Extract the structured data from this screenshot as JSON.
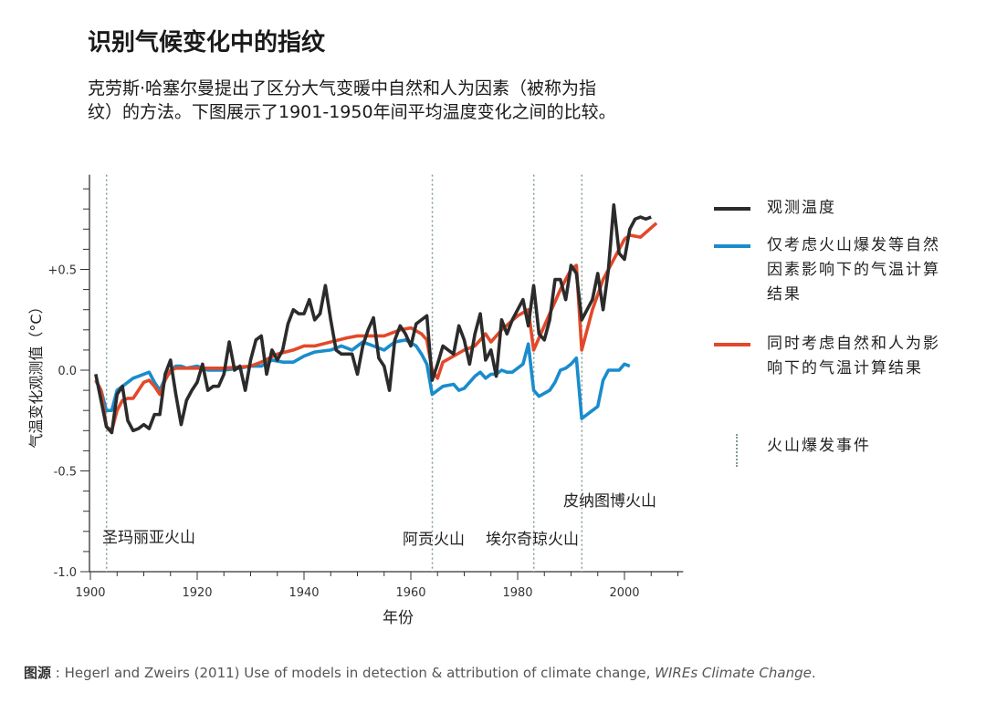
{
  "title": "识别气候变化中的指纹",
  "subtitle": "克劳斯·哈塞尔曼提出了区分大气变暖中自然和人为因素（被称为指纹）的方法。下图展示了1901-1950年间平均温度变化之间的比较。",
  "source": {
    "label": "图源",
    "text": " : Hegerl and Zweirs (2011) Use of models in detection & attribution of climate change, ",
    "journal": "WIREs Climate Change",
    "end": "."
  },
  "chart_data": {
    "type": "line",
    "xlabel": "年份",
    "ylabel": "气温变化观测值（°C）",
    "xlim": [
      1900,
      2011
    ],
    "ylim": [
      -1.0,
      0.97
    ],
    "x_ticks": [
      1900,
      1920,
      1940,
      1960,
      1980,
      2000
    ],
    "x_tick_labels": [
      "1900",
      "1920",
      "1940",
      "1960",
      "1980",
      "2000"
    ],
    "y_ticks": [
      0.5,
      0.0,
      -0.5,
      -1.0
    ],
    "y_tick_labels": [
      "+0.5",
      "0.0",
      "-0.5",
      "-1.0"
    ],
    "grid": false,
    "legend_position": "right",
    "series": [
      {
        "name": "观测温度",
        "color": "#2b2b2b",
        "x": [
          1901,
          1902,
          1903,
          1904,
          1905,
          1906,
          1907,
          1908,
          1909,
          1910,
          1911,
          1912,
          1913,
          1914,
          1915,
          1916,
          1917,
          1918,
          1919,
          1920,
          1921,
          1922,
          1923,
          1924,
          1925,
          1926,
          1927,
          1928,
          1929,
          1930,
          1931,
          1932,
          1933,
          1934,
          1935,
          1936,
          1937,
          1938,
          1939,
          1940,
          1941,
          1942,
          1943,
          1944,
          1945,
          1946,
          1947,
          1948,
          1949,
          1950,
          1951,
          1952,
          1953,
          1954,
          1955,
          1956,
          1957,
          1958,
          1959,
          1960,
          1961,
          1962,
          1963,
          1964,
          1965,
          1966,
          1967,
          1968,
          1969,
          1970,
          1971,
          1972,
          1973,
          1974,
          1975,
          1976,
          1977,
          1978,
          1979,
          1980,
          1981,
          1982,
          1983,
          1984,
          1985,
          1986,
          1987,
          1988,
          1989,
          1990,
          1991,
          1992,
          1993,
          1994,
          1995,
          1996,
          1997,
          1998,
          1999,
          2000,
          2001,
          2002,
          2003,
          2004,
          2005
        ],
        "y": [
          -0.02,
          -0.15,
          -0.28,
          -0.31,
          -0.12,
          -0.08,
          -0.25,
          -0.3,
          -0.29,
          -0.27,
          -0.29,
          -0.22,
          -0.22,
          -0.02,
          0.05,
          -0.12,
          -0.27,
          -0.15,
          -0.1,
          -0.06,
          0.03,
          -0.1,
          -0.08,
          -0.08,
          -0.02,
          0.14,
          0.0,
          0.02,
          -0.1,
          0.05,
          0.15,
          0.17,
          -0.02,
          0.1,
          0.05,
          0.1,
          0.23,
          0.3,
          0.28,
          0.28,
          0.35,
          0.25,
          0.28,
          0.42,
          0.25,
          0.1,
          0.08,
          0.08,
          0.08,
          -0.02,
          0.12,
          0.2,
          0.26,
          0.06,
          0.02,
          -0.1,
          0.15,
          0.22,
          0.18,
          0.12,
          0.23,
          0.25,
          0.27,
          -0.05,
          0.03,
          0.12,
          0.1,
          0.08,
          0.22,
          0.15,
          0.03,
          0.18,
          0.28,
          0.05,
          0.1,
          -0.03,
          0.25,
          0.18,
          0.25,
          0.3,
          0.35,
          0.22,
          0.42,
          0.18,
          0.15,
          0.25,
          0.45,
          0.45,
          0.35,
          0.52,
          0.48,
          0.25,
          0.3,
          0.35,
          0.48,
          0.3,
          0.5,
          0.82,
          0.58,
          0.55,
          0.7,
          0.75,
          0.76,
          0.75,
          0.76
        ]
      },
      {
        "name": "仅考虑火山爆发等自然因素影响下的气温计算结果",
        "color": "#1a8ccc",
        "x": [
          1901,
          1902,
          1903,
          1904,
          1905,
          1906,
          1907,
          1908,
          1909,
          1910,
          1911,
          1912,
          1913,
          1914,
          1915,
          1916,
          1917,
          1918,
          1920,
          1922,
          1925,
          1928,
          1930,
          1932,
          1934,
          1936,
          1938,
          1940,
          1942,
          1945,
          1947,
          1949,
          1951,
          1953,
          1955,
          1957,
          1959,
          1961,
          1962,
          1963,
          1964,
          1966,
          1968,
          1969,
          1970,
          1971,
          1972,
          1973,
          1974,
          1975,
          1976,
          1977,
          1978,
          1979,
          1980,
          1981,
          1982,
          1983,
          1984,
          1986,
          1987,
          1988,
          1989,
          1990,
          1991,
          1992,
          1994,
          1995,
          1996,
          1997,
          1998,
          1999,
          2000,
          2001
        ],
        "y": [
          -0.05,
          -0.1,
          -0.2,
          -0.2,
          -0.1,
          -0.08,
          -0.06,
          -0.04,
          -0.03,
          -0.02,
          -0.01,
          -0.06,
          -0.1,
          -0.04,
          -0.01,
          0.02,
          0.02,
          0.01,
          0.02,
          0.0,
          0.0,
          0.01,
          0.02,
          0.02,
          0.05,
          0.04,
          0.04,
          0.07,
          0.09,
          0.1,
          0.12,
          0.1,
          0.14,
          0.12,
          0.1,
          0.14,
          0.15,
          0.12,
          0.08,
          0.03,
          -0.12,
          -0.08,
          -0.07,
          -0.1,
          -0.09,
          -0.06,
          -0.03,
          -0.01,
          -0.04,
          -0.02,
          -0.02,
          0.0,
          -0.01,
          -0.01,
          0.01,
          0.03,
          0.13,
          -0.1,
          -0.13,
          -0.1,
          -0.06,
          0.0,
          0.01,
          0.03,
          0.06,
          -0.24,
          -0.2,
          -0.18,
          -0.05,
          0.0,
          0.0,
          0.0,
          0.03,
          0.02
        ]
      },
      {
        "name": "同时考虑自然和人为影响下的气温计算结果",
        "color": "#e2492a",
        "x": [
          1901,
          1902,
          1903,
          1904,
          1905,
          1906,
          1907,
          1908,
          1909,
          1910,
          1911,
          1912,
          1913,
          1914,
          1915,
          1916,
          1918,
          1920,
          1925,
          1930,
          1932,
          1935,
          1938,
          1940,
          1942,
          1945,
          1948,
          1950,
          1955,
          1958,
          1960,
          1962,
          1963,
          1964,
          1965,
          1966,
          1968,
          1970,
          1972,
          1974,
          1975,
          1977,
          1980,
          1982,
          1983,
          1985,
          1988,
          1990,
          1991,
          1992,
          1994,
          1996,
          1998,
          2000,
          2001,
          2003,
          2006
        ],
        "y": [
          -0.05,
          -0.1,
          -0.28,
          -0.3,
          -0.2,
          -0.15,
          -0.14,
          -0.14,
          -0.1,
          -0.06,
          -0.05,
          -0.08,
          -0.12,
          -0.05,
          0.0,
          0.01,
          0.01,
          0.01,
          0.01,
          0.02,
          0.04,
          0.08,
          0.1,
          0.12,
          0.12,
          0.14,
          0.16,
          0.17,
          0.17,
          0.2,
          0.21,
          0.18,
          0.15,
          0.0,
          -0.04,
          0.04,
          0.07,
          0.1,
          0.12,
          0.18,
          0.14,
          0.2,
          0.27,
          0.3,
          0.1,
          0.22,
          0.4,
          0.5,
          0.52,
          0.1,
          0.3,
          0.45,
          0.55,
          0.65,
          0.67,
          0.66,
          0.73
        ]
      }
    ],
    "volcanic_events": {
      "legend": "火山爆发事件",
      "color": "#7f9a9a",
      "events": [
        {
          "year": 1902,
          "label": "圣玛丽亚火山"
        },
        {
          "year": 1963,
          "label": "阿贡火山"
        },
        {
          "year": 1982,
          "label": "埃尔奇琼火山"
        },
        {
          "year": 1991,
          "label": "皮纳图博火山"
        }
      ]
    }
  }
}
